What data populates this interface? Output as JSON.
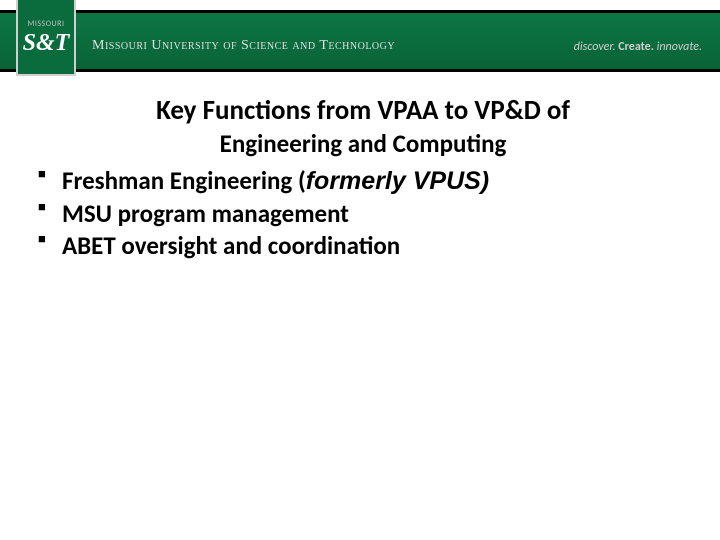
{
  "header": {
    "logo_state": "MISSOURI",
    "logo_st": "S&T",
    "university": "Missouri University of Science and Technology",
    "tagline_1": "discover.",
    "tagline_2": "Create.",
    "tagline_3": "innovate.",
    "bg_color": "#0a6b3d",
    "text_color": "#e0e0e0"
  },
  "slide": {
    "title_line1": "Key Functions from VPAA to VP&D of",
    "title_line2": "Engineering and Computing",
    "bullets": [
      {
        "prefix": "Freshman Engineering (",
        "italic": "formerly VPUS)",
        "suffix": ""
      },
      {
        "prefix": "MSU program management",
        "italic": "",
        "suffix": ""
      },
      {
        "prefix": "ABET oversight and coordination",
        "italic": "",
        "suffix": ""
      }
    ],
    "title_fontsize": 27,
    "bullet_fontsize": 25,
    "text_color": "#000000",
    "background_color": "#ffffff"
  }
}
